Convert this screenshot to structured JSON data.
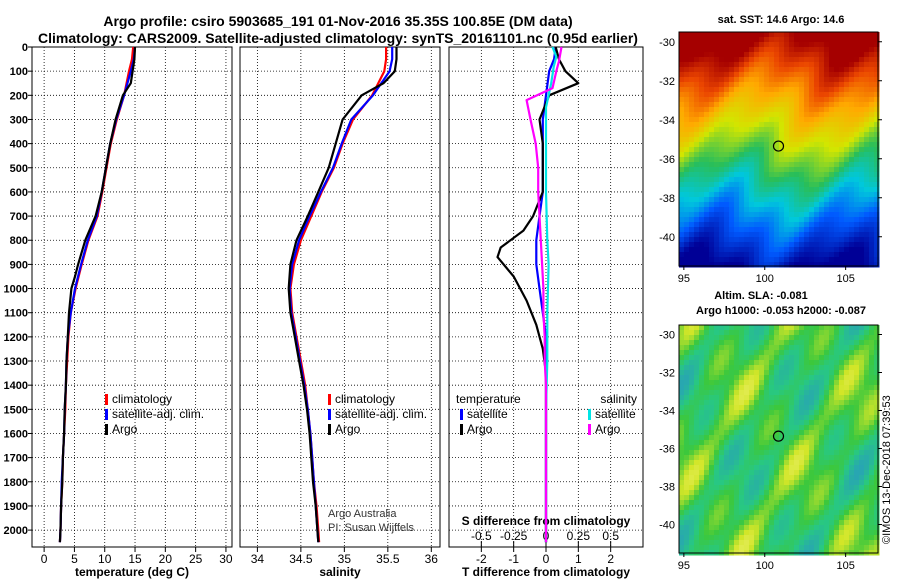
{
  "header": {
    "line1": "Argo profile: csiro 5903685_191 01-Nov-2016 35.35S 100.85E (DM data)",
    "line2": "Climatology: CARS2009. Satellite-adjusted climatology: synTS_20161101.nc (0.95d earlier)"
  },
  "maps": {
    "sst_title": "sat. SST: 14.6 Argo: 14.6",
    "sla_title1": "Altim. SLA: -0.081",
    "sla_title2": "Argo h1000: -0.053 h2000: -0.087",
    "lat_ticks": [
      "-30",
      "-32",
      "-34",
      "-36",
      "-38",
      "-40"
    ],
    "lon_ticks": [
      "95",
      "100",
      "105"
    ]
  },
  "credit": {
    "vertical": "©IMOS 13-Dec-2018 07:39:53",
    "agency": "Argo Australia",
    "pi": "PI: Susan Wijffels"
  },
  "legend": {
    "clim": "climatology",
    "sat": "satellite-adj. clim.",
    "argo": "Argo",
    "temperature_head": "temperature",
    "salinity_head": "salinity",
    "satellite": "satellite",
    "argo_short": "Argo"
  },
  "colors": {
    "clim": "#ff0000",
    "sat": "#0000ff",
    "argo": "#000000",
    "tsat": "#00e5e5",
    "sargo": "#ff00ff"
  },
  "chart_data": [
    {
      "type": "line",
      "title": "",
      "xlabel": "temperature (deg C)",
      "ylabel": "",
      "xlim": [
        -2,
        31
      ],
      "ylim": [
        2070,
        0
      ],
      "xticks": [
        0,
        5,
        10,
        15,
        20,
        25,
        30
      ],
      "x_tick_labels": [
        "0",
        "5",
        "10",
        "15",
        "20",
        "25",
        "30"
      ],
      "y_ticks": [
        0,
        100,
        200,
        300,
        400,
        500,
        600,
        700,
        800,
        900,
        1000,
        1100,
        1200,
        1300,
        1400,
        1500,
        1600,
        1700,
        1800,
        1900,
        2000
      ],
      "y_tick_labels": [
        "0",
        "100",
        "200",
        "300",
        "400",
        "500",
        "600",
        "700",
        "800",
        "900",
        "1000",
        "1100",
        "1200",
        "1300",
        "1400",
        "1500",
        "1600",
        "1700",
        "1800",
        "1900",
        "2000"
      ],
      "grid": true,
      "series": [
        {
          "name": "climatology",
          "color_key": "clim",
          "points": [
            [
              14.7,
              0
            ],
            [
              14.5,
              50
            ],
            [
              14.0,
              100
            ],
            [
              13.2,
              200
            ],
            [
              12.0,
              300
            ],
            [
              11.0,
              400
            ],
            [
              10.3,
              500
            ],
            [
              9.6,
              600
            ],
            [
              8.8,
              700
            ],
            [
              7.3,
              800
            ],
            [
              6.2,
              900
            ],
            [
              5.2,
              1000
            ],
            [
              4.4,
              1100
            ],
            [
              4.0,
              1200
            ],
            [
              3.8,
              1300
            ],
            [
              3.6,
              1400
            ],
            [
              3.5,
              1500
            ],
            [
              3.3,
              1600
            ],
            [
              3.1,
              1700
            ],
            [
              3.0,
              1800
            ],
            [
              2.8,
              1900
            ],
            [
              2.7,
              2000
            ],
            [
              2.6,
              2050
            ]
          ]
        },
        {
          "name": "satellite-adj. clim.",
          "color_key": "sat",
          "points": [
            [
              15.0,
              0
            ],
            [
              14.8,
              50
            ],
            [
              14.3,
              100
            ],
            [
              13.2,
              200
            ],
            [
              11.9,
              300
            ],
            [
              10.9,
              400
            ],
            [
              10.2,
              500
            ],
            [
              9.5,
              600
            ],
            [
              8.7,
              700
            ],
            [
              7.2,
              800
            ],
            [
              6.1,
              900
            ],
            [
              5.1,
              1000
            ],
            [
              4.4,
              1100
            ],
            [
              3.9,
              1200
            ],
            [
              3.7,
              1300
            ],
            [
              3.6,
              1400
            ],
            [
              3.4,
              1500
            ],
            [
              3.3,
              1600
            ],
            [
              3.1,
              1700
            ],
            [
              2.9,
              1800
            ],
            [
              2.8,
              1900
            ],
            [
              2.7,
              2000
            ],
            [
              2.6,
              2050
            ]
          ]
        },
        {
          "name": "Argo",
          "color_key": "argo",
          "points": [
            [
              15.0,
              0
            ],
            [
              14.9,
              50
            ],
            [
              14.6,
              100
            ],
            [
              14.3,
              150
            ],
            [
              13.0,
              200
            ],
            [
              11.8,
              300
            ],
            [
              10.9,
              400
            ],
            [
              10.2,
              500
            ],
            [
              9.5,
              600
            ],
            [
              8.5,
              700
            ],
            [
              6.8,
              800
            ],
            [
              5.6,
              900
            ],
            [
              5.1,
              950
            ],
            [
              4.5,
              1000
            ],
            [
              4.1,
              1100
            ],
            [
              3.9,
              1200
            ],
            [
              3.7,
              1300
            ],
            [
              3.6,
              1400
            ],
            [
              3.4,
              1500
            ],
            [
              3.3,
              1600
            ],
            [
              3.1,
              1700
            ],
            [
              3.0,
              1800
            ],
            [
              2.8,
              1900
            ],
            [
              2.7,
              2000
            ],
            [
              2.6,
              2050
            ]
          ]
        }
      ]
    },
    {
      "type": "line",
      "title": "",
      "xlabel": "salinity",
      "ylabel": "",
      "xlim": [
        33.8,
        36.1
      ],
      "ylim": [
        2070,
        0
      ],
      "xticks": [
        34,
        34.5,
        35,
        35.5,
        36
      ],
      "x_tick_labels": [
        "34",
        "34.5",
        "35",
        "35.5",
        "36"
      ],
      "grid": true,
      "series": [
        {
          "name": "climatology",
          "color_key": "clim",
          "points": [
            [
              35.48,
              0
            ],
            [
              35.48,
              50
            ],
            [
              35.46,
              100
            ],
            [
              35.32,
              200
            ],
            [
              35.1,
              300
            ],
            [
              34.98,
              400
            ],
            [
              34.88,
              500
            ],
            [
              34.74,
              600
            ],
            [
              34.62,
              700
            ],
            [
              34.5,
              800
            ],
            [
              34.42,
              900
            ],
            [
              34.38,
              1000
            ],
            [
              34.4,
              1100
            ],
            [
              34.45,
              1200
            ],
            [
              34.5,
              1300
            ],
            [
              34.55,
              1400
            ],
            [
              34.58,
              1500
            ],
            [
              34.61,
              1600
            ],
            [
              34.63,
              1700
            ],
            [
              34.65,
              1800
            ],
            [
              34.68,
              1900
            ],
            [
              34.7,
              2000
            ],
            [
              34.71,
              2050
            ]
          ]
        },
        {
          "name": "satellite-adj. clim.",
          "color_key": "sat",
          "points": [
            [
              35.55,
              0
            ],
            [
              35.55,
              50
            ],
            [
              35.52,
              100
            ],
            [
              35.33,
              200
            ],
            [
              35.08,
              300
            ],
            [
              34.97,
              400
            ],
            [
              34.87,
              500
            ],
            [
              34.73,
              600
            ],
            [
              34.6,
              700
            ],
            [
              34.48,
              800
            ],
            [
              34.4,
              900
            ],
            [
              34.37,
              1000
            ],
            [
              34.39,
              1100
            ],
            [
              34.44,
              1200
            ],
            [
              34.49,
              1300
            ],
            [
              34.54,
              1400
            ],
            [
              34.58,
              1500
            ],
            [
              34.61,
              1600
            ],
            [
              34.63,
              1700
            ],
            [
              34.65,
              1800
            ],
            [
              34.67,
              1900
            ],
            [
              34.69,
              2000
            ],
            [
              34.7,
              2050
            ]
          ]
        },
        {
          "name": "Argo",
          "color_key": "argo",
          "points": [
            [
              35.6,
              0
            ],
            [
              35.6,
              50
            ],
            [
              35.58,
              100
            ],
            [
              35.45,
              150
            ],
            [
              35.2,
              200
            ],
            [
              34.98,
              300
            ],
            [
              34.9,
              400
            ],
            [
              34.82,
              500
            ],
            [
              34.7,
              600
            ],
            [
              34.58,
              700
            ],
            [
              34.45,
              800
            ],
            [
              34.38,
              900
            ],
            [
              34.36,
              1000
            ],
            [
              34.38,
              1100
            ],
            [
              34.43,
              1200
            ],
            [
              34.48,
              1300
            ],
            [
              34.53,
              1400
            ],
            [
              34.57,
              1500
            ],
            [
              34.6,
              1600
            ],
            [
              34.62,
              1700
            ],
            [
              34.64,
              1800
            ],
            [
              34.67,
              1900
            ],
            [
              34.69,
              2000
            ],
            [
              34.7,
              2050
            ]
          ]
        }
      ]
    },
    {
      "type": "line",
      "title": "",
      "xlabel": "T difference from climatology",
      "xlabel_top": "S difference from climatology",
      "ylabel": "",
      "xlim": [
        -3,
        3
      ],
      "ylim": [
        2070,
        0
      ],
      "xticks": [
        -2,
        -1,
        0,
        1,
        2
      ],
      "x_tick_labels": [
        "-2",
        "-1",
        "0",
        "1",
        "2"
      ],
      "s_xticks": [
        -0.5,
        -0.25,
        0,
        0.25,
        0.5
      ],
      "s_tick_labels": [
        "-0.5",
        "-0.25",
        "0",
        "0.25",
        "0.5"
      ],
      "grid": true,
      "series": [
        {
          "name": "temperature satellite",
          "color_key": "sat",
          "axis": "T",
          "points": [
            [
              0.3,
              0
            ],
            [
              0.25,
              50
            ],
            [
              0.1,
              100
            ],
            [
              0,
              200
            ],
            [
              -0.1,
              300
            ],
            [
              -0.1,
              400
            ],
            [
              -0.1,
              500
            ],
            [
              -0.1,
              600
            ],
            [
              -0.2,
              700
            ],
            [
              -0.3,
              800
            ],
            [
              -0.3,
              900
            ],
            [
              -0.2,
              1000
            ],
            [
              -0.1,
              1100
            ],
            [
              0,
              1200
            ],
            [
              0,
              1300
            ],
            [
              0,
              1400
            ],
            [
              0,
              1500
            ],
            [
              0,
              1600
            ],
            [
              0,
              1700
            ],
            [
              0,
              1800
            ],
            [
              0,
              1900
            ],
            [
              0,
              2000
            ],
            [
              0,
              2050
            ]
          ]
        },
        {
          "name": "temperature Argo",
          "color_key": "argo",
          "axis": "T",
          "points": [
            [
              0.3,
              0
            ],
            [
              0.4,
              50
            ],
            [
              0.6,
              100
            ],
            [
              1.0,
              150
            ],
            [
              0.1,
              200
            ],
            [
              -0.2,
              300
            ],
            [
              -0.1,
              400
            ],
            [
              -0.1,
              500
            ],
            [
              -0.1,
              600
            ],
            [
              -0.4,
              700
            ],
            [
              -0.7,
              760
            ],
            [
              -1.4,
              830
            ],
            [
              -1.5,
              870
            ],
            [
              -1.0,
              950
            ],
            [
              -0.6,
              1050
            ],
            [
              -0.3,
              1150
            ],
            [
              -0.1,
              1250
            ],
            [
              0,
              1350
            ],
            [
              0,
              1450
            ],
            [
              0,
              1600
            ],
            [
              0,
              1800
            ],
            [
              0,
              2000
            ],
            [
              0,
              2050
            ]
          ]
        },
        {
          "name": "salinity satellite",
          "color_key": "tsat",
          "axis": "S",
          "points": [
            [
              0.05,
              0
            ],
            [
              0.08,
              40
            ],
            [
              0.06,
              80
            ],
            [
              0.04,
              150
            ],
            [
              0.0,
              250
            ],
            [
              0.0,
              400
            ],
            [
              0.0,
              600
            ],
            [
              0.01,
              800
            ],
            [
              0.02,
              900
            ],
            [
              0.01,
              1100
            ],
            [
              0.01,
              1300
            ],
            [
              0.0,
              1500
            ],
            [
              0.0,
              1700
            ],
            [
              0.0,
              2050
            ]
          ]
        },
        {
          "name": "salinity Argo",
          "color_key": "sargo",
          "axis": "S",
          "points": [
            [
              0.12,
              0
            ],
            [
              0.1,
              60
            ],
            [
              0.08,
              100
            ],
            [
              0.05,
              170
            ],
            [
              -0.15,
              220
            ],
            [
              -0.12,
              300
            ],
            [
              -0.08,
              400
            ],
            [
              -0.06,
              500
            ],
            [
              -0.06,
              600
            ],
            [
              -0.05,
              700
            ],
            [
              -0.04,
              800
            ],
            [
              -0.03,
              900
            ],
            [
              -0.02,
              1000
            ],
            [
              -0.02,
              1100
            ],
            [
              -0.01,
              1200
            ],
            [
              -0.01,
              1300
            ],
            [
              0,
              1400
            ],
            [
              0,
              1600
            ],
            [
              0,
              1800
            ],
            [
              0,
              2050
            ]
          ]
        }
      ]
    }
  ]
}
